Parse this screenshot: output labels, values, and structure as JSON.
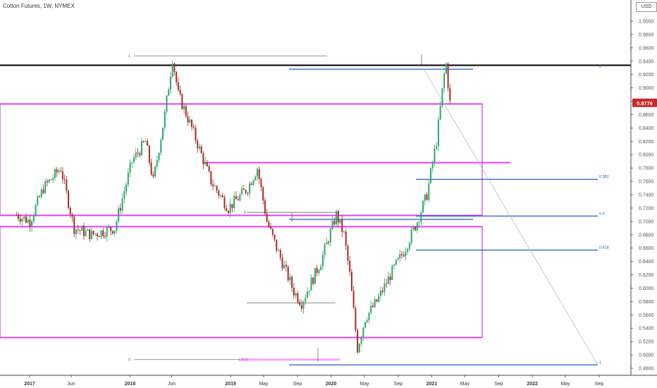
{
  "chart": {
    "title": "Cotton Futures, 1W, NYMEX",
    "currency": "USD",
    "last_price": "0.8776",
    "last_price_value": 0.8776,
    "colors": {
      "up": "#2ca66a",
      "down": "#a82a24",
      "magenta": "#e040fb",
      "fib_blue": "#1e5bd6",
      "black_line": "#000000",
      "box": "#c23ce6",
      "grid_axis": "#555555",
      "price_tag": "#c62828"
    }
  },
  "chart_data": {
    "type": "candlestick",
    "x_axis": {
      "labels": [
        "2017",
        "Jun",
        "2018",
        "Jun",
        "2019",
        "May",
        "Sep",
        "2020",
        "May",
        "Sep",
        "2021",
        "May",
        "Sep",
        "2022",
        "May",
        "Sep"
      ],
      "dates": [
        "2017-01-01",
        "2017-06-01",
        "2018-01-01",
        "2018-06-01",
        "2019-01-01",
        "2019-05-01",
        "2019-09-01",
        "2020-01-01",
        "2020-05-01",
        "2020-09-01",
        "2021-01-01",
        "2021-05-01",
        "2021-09-01",
        "2022-01-01",
        "2022-05-01",
        "2022-09-01"
      ],
      "bold": [
        "2017",
        "2018",
        "2019",
        "2020",
        "2021",
        "2022"
      ]
    },
    "y_axis": {
      "range": [
        0.475,
        1.0175
      ],
      "ticks": [
        "1.0000",
        "0.9800",
        "0.9600",
        "0.9400",
        "0.9200",
        "0.9000",
        "0.8800",
        "0.8600",
        "0.8400",
        "0.8200",
        "0.8000",
        "0.7800",
        "0.7600",
        "0.7400",
        "0.7200",
        "0.7000",
        "0.6800",
        "0.6600",
        "0.6400",
        "0.6200",
        "0.6000",
        "0.5800",
        "0.5600",
        "0.5400",
        "0.5200",
        "0.5000",
        "0.4800"
      ],
      "position": "right"
    },
    "anchors": [
      [
        "2016-11-14",
        0.71
      ],
      [
        "2017-01-02",
        0.7
      ],
      [
        "2017-02-20",
        0.75
      ],
      [
        "2017-04-24",
        0.78
      ],
      [
        "2017-06-12",
        0.69
      ],
      [
        "2017-08-14",
        0.68
      ],
      [
        "2017-11-06",
        0.69
      ],
      [
        "2018-01-08",
        0.79
      ],
      [
        "2018-02-26",
        0.82
      ],
      [
        "2018-03-26",
        0.76
      ],
      [
        "2018-05-07",
        0.86
      ],
      [
        "2018-06-04",
        0.945
      ],
      [
        "2018-06-25",
        0.89
      ],
      [
        "2018-08-13",
        0.84
      ],
      [
        "2018-10-22",
        0.76
      ],
      [
        "2018-12-24",
        0.72
      ],
      [
        "2019-03-04",
        0.75
      ],
      [
        "2019-04-08",
        0.78
      ],
      [
        "2019-05-13",
        0.7
      ],
      [
        "2019-06-17",
        0.66
      ],
      [
        "2019-08-19",
        0.595
      ],
      [
        "2019-09-16",
        0.578
      ],
      [
        "2019-11-25",
        0.64
      ],
      [
        "2020-01-20",
        0.71
      ],
      [
        "2020-02-17",
        0.68
      ],
      [
        "2020-03-09",
        0.62
      ],
      [
        "2020-04-06",
        0.51
      ],
      [
        "2020-05-04",
        0.555
      ],
      [
        "2020-06-15",
        0.58
      ],
      [
        "2020-08-10",
        0.625
      ],
      [
        "2020-09-21",
        0.655
      ],
      [
        "2020-11-09",
        0.7
      ],
      [
        "2020-12-14",
        0.74
      ],
      [
        "2021-01-18",
        0.82
      ],
      [
        "2021-02-15",
        0.92
      ],
      [
        "2021-02-22",
        0.935
      ],
      [
        "2021-03-08",
        0.8776
      ]
    ],
    "overlays": {
      "horizontal_levels": [
        {
          "label": "1",
          "price": 0.948
        },
        {
          "label": "0",
          "price": 0.7135
        },
        {
          "label": "0",
          "price": 0.493
        },
        {
          "label": "1.618",
          "price": 0.493
        }
      ],
      "fib_levels": [
        {
          "label": "0",
          "price": 0.928
        },
        {
          "label": "0.382",
          "price": 0.763
        },
        {
          "label": "0.5",
          "price": 0.708
        },
        {
          "label": "0.618",
          "price": 0.657
        },
        {
          "label": "1",
          "price": 0.485
        }
      ],
      "key_prices": [
        0.934,
        0.788,
        0.876,
        0.709,
        0.692,
        0.526,
        0.578
      ]
    }
  }
}
